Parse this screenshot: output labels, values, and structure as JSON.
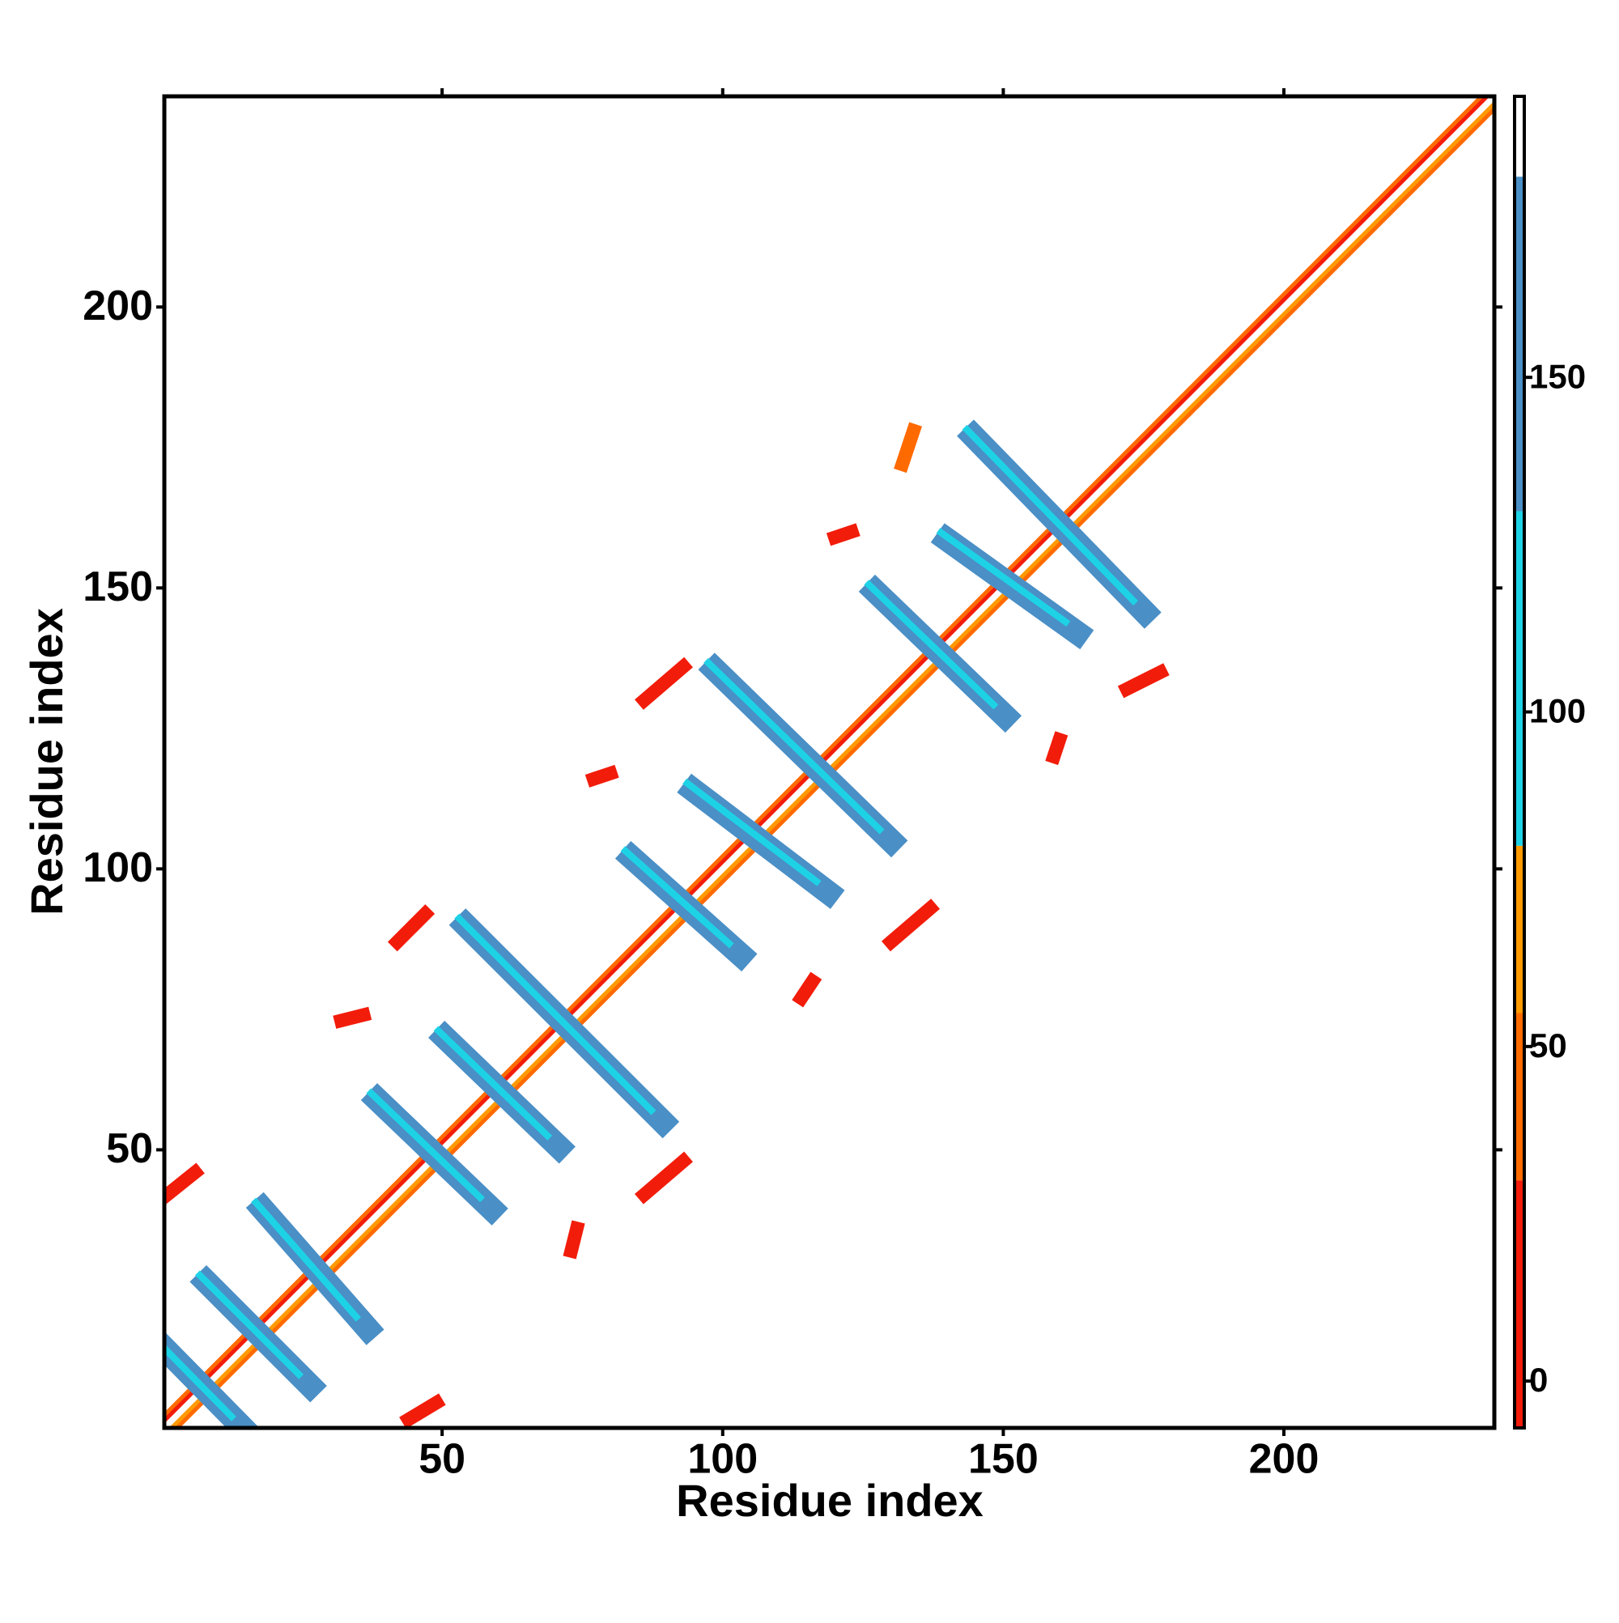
{
  "chart_data": {
    "type": "contact_map",
    "xlabel": "Residue index",
    "ylabel": "Residue index",
    "xlim": [
      0.5,
      237.5
    ],
    "ylim": [
      0.5,
      237.5
    ],
    "xticks": [
      50,
      100,
      150,
      200
    ],
    "yticks": [
      50,
      100,
      150,
      200
    ],
    "colorbar": {
      "lim": [
        -7,
        192
      ],
      "ticks": [
        0,
        50,
        100,
        150
      ],
      "bounds": [
        -7,
        30,
        55,
        80,
        130,
        180,
        192
      ],
      "colors": [
        "#f21c0a",
        "#ff6a00",
        "#ff9a00",
        "#1ed2e6",
        "#4a8fc6",
        "#ffffff"
      ]
    },
    "diagonal_bands": [
      {
        "offset": 2,
        "value": 40
      },
      {
        "offset": -2,
        "value": 40
      },
      {
        "offset": 1,
        "value": 0
      },
      {
        "offset": -1,
        "value": 60
      },
      {
        "offset": 0,
        "value": 185
      }
    ],
    "features": [
      {
        "x": [
          0.7,
          14.5
        ],
        "y": [
          14.5,
          0.5
        ],
        "value": 150
      },
      {
        "x": [
          8,
          26.5
        ],
        "y": [
          26.5,
          8
        ],
        "value": 150
      },
      {
        "x": [
          18,
          36.7
        ],
        "y": [
          39.5,
          18.2
        ],
        "value": 150
      },
      {
        "x": [
          38.5,
          58.8
        ],
        "y": [
          58.9,
          39.5
        ],
        "value": 150
      },
      {
        "x": [
          50.5,
          70.8
        ],
        "y": [
          70,
          50.5
        ],
        "value": 150
      },
      {
        "x": [
          54.2,
          89.3
        ],
        "y": [
          90,
          55
        ],
        "value": 150
      },
      {
        "x": [
          83.8,
          103.2
        ],
        "y": [
          102,
          84.7
        ],
        "value": 150
      },
      {
        "x": [
          94.8,
          118.8
        ],
        "y": [
          114,
          95.8
        ],
        "value": 150
      },
      {
        "x": [
          98.6,
          130
        ],
        "y": [
          135.5,
          105
        ],
        "value": 150
      },
      {
        "x": [
          127.2,
          150.3
        ],
        "y": [
          149.4,
          127.2
        ],
        "value": 150
      },
      {
        "x": [
          140,
          163.2
        ],
        "y": [
          158.6,
          142
        ],
        "value": 150
      },
      {
        "x": [
          144.7,
          175.2
        ],
        "y": [
          177,
          145.7
        ],
        "value": 150
      },
      {
        "x": [
          1,
          6
        ],
        "y": [
          42,
          46
        ],
        "value": 5
      },
      {
        "x": [
          42,
          47
        ],
        "y": [
          87,
          92
        ],
        "value": 5
      },
      {
        "x": [
          32,
          36
        ],
        "y": [
          73,
          74
        ],
        "value": 5
      },
      {
        "x": [
          44,
          49
        ],
        "y": [
          2,
          5
        ],
        "value": 5
      },
      {
        "x": [
          86,
          93
        ],
        "y": [
          42,
          48
        ],
        "value": 5
      },
      {
        "x": [
          86,
          93
        ],
        "y": [
          130,
          136
        ],
        "value": 5
      },
      {
        "x": [
          77,
          80
        ],
        "y": [
          116,
          117
        ],
        "value": 5
      },
      {
        "x": [
          73,
          74
        ],
        "y": [
          32,
          36
        ],
        "value": 5
      },
      {
        "x": [
          130,
          137
        ],
        "y": [
          87,
          93
        ],
        "value": 5
      },
      {
        "x": [
          132,
          134
        ],
        "y": [
          172,
          178
        ],
        "value": 40
      },
      {
        "x": [
          120,
          123
        ],
        "y": [
          159,
          160
        ],
        "value": 5
      },
      {
        "x": [
          172,
          178
        ],
        "y": [
          132,
          135
        ],
        "value": 5
      },
      {
        "x": [
          159,
          160
        ],
        "y": [
          120,
          123
        ],
        "value": 5
      },
      {
        "x": [
          114,
          116
        ],
        "y": [
          77,
          80
        ],
        "value": 5
      }
    ]
  }
}
